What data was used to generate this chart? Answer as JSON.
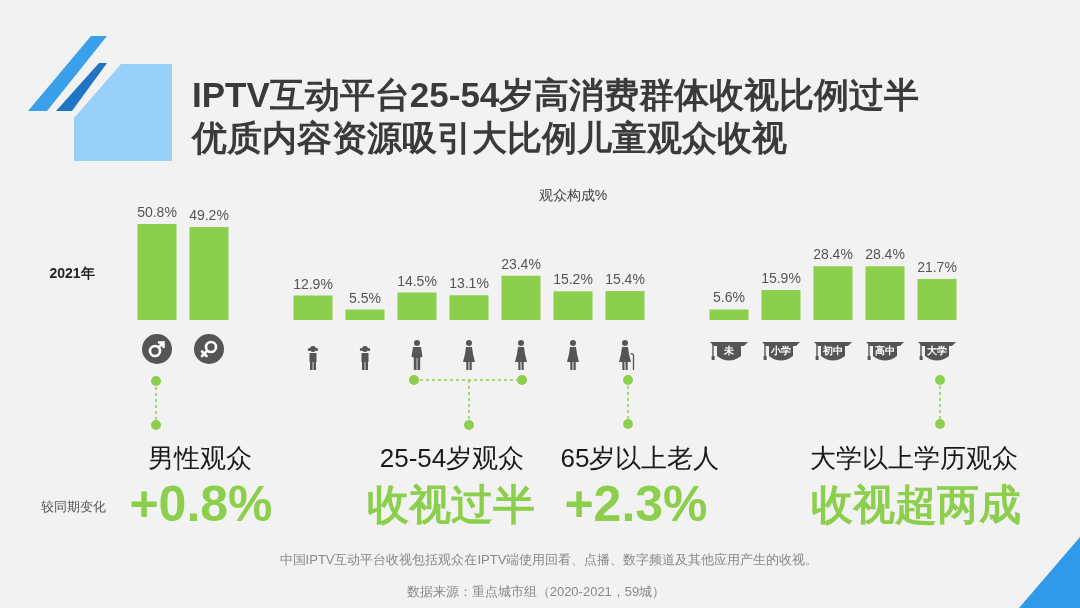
{
  "chart_data": {
    "type": "bar",
    "title": "IPTV互动平台25-54岁高消费群体收视比例过半优质内容资源吸引大比例儿童观众收视",
    "subtitle": "观众构成%",
    "categories": [
      null,
      null,
      null,
      null,
      null,
      null,
      null,
      null,
      null,
      null,
      null,
      "未",
      "小学",
      "初中",
      "高中",
      "大学"
    ],
    "values": [
      50.8,
      49.2,
      null,
      12.9,
      5.5,
      14.5,
      13.1,
      23.4,
      15.2,
      15.4,
      null,
      5.6,
      15.9,
      28.4,
      28.4,
      21.7
    ],
    "value_labels": [
      "50.8%",
      "49.2%",
      null,
      "12.9%",
      "5.5%",
      "14.5%",
      "13.1%",
      "23.4%",
      "15.2%",
      "15.4%",
      null,
      "5.6%",
      "15.9%",
      "28.4%",
      "28.4%",
      "21.7%"
    ],
    "color": "#8ccf4d",
    "annotations": [
      "2021年",
      "男性观众",
      "较同期变化",
      "+0.8%",
      "25-54岁观众",
      "收视过半",
      "65岁以上老人",
      "+2.3%",
      "大学以上学历观众",
      "收视超两成",
      "中国IPTV互动平台收视包括观众在IPTV端使用回看、点播、数字频道及其他应用产生的收视。",
      "数据来源：重点城市组（2020-2021，59城）"
    ]
  }
}
